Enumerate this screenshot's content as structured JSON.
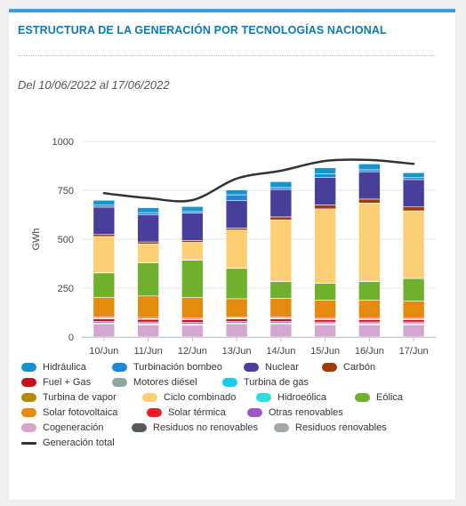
{
  "header": {
    "title": "ESTRUCTURA DE LA GENERACIÓN POR TECNOLOGÍAS NACIONAL",
    "period": "Del 10/06/2022 al 17/06/2022"
  },
  "chart_data": {
    "type": "bar",
    "stacked": true,
    "ylabel": "GWh",
    "ylim": [
      0,
      1000
    ],
    "yticks": [
      "0",
      "250",
      "500",
      "750",
      "1000"
    ],
    "grid": true,
    "legend_placement": "bottom",
    "categories": [
      "10/Jun",
      "11/Jun",
      "12/Jun",
      "13/Jun",
      "14/Jun",
      "15/Jun",
      "16/Jun",
      "17/Jun"
    ],
    "series": [
      {
        "name": "Cogeneración",
        "color": "#d4a6d0",
        "values": [
          65,
          62,
          60,
          65,
          65,
          62,
          62,
          62
        ]
      },
      {
        "name": "Residuos no renovables",
        "color": "#555a5f",
        "values": [
          4,
          4,
          4,
          4,
          4,
          4,
          4,
          4
        ]
      },
      {
        "name": "Residuos renovables",
        "color": "#a3a7ab",
        "values": [
          3,
          3,
          3,
          3,
          3,
          3,
          3,
          3
        ]
      },
      {
        "name": "Otras renovables",
        "color": "#9a5bc6",
        "values": [
          8,
          8,
          8,
          8,
          8,
          8,
          8,
          8
        ]
      },
      {
        "name": "Fuel + Gas",
        "color": "#c1121f",
        "values": [
          13,
          13,
          13,
          13,
          13,
          12,
          12,
          12
        ]
      },
      {
        "name": "Motores diésel",
        "color": "#8ea7a3",
        "values": [
          2,
          2,
          2,
          2,
          2,
          2,
          2,
          2
        ]
      },
      {
        "name": "Turbina de gas",
        "color": "#1fc8f0",
        "values": [
          1,
          1,
          1,
          1,
          1,
          1,
          1,
          1
        ]
      },
      {
        "name": "Turbina de vapor",
        "color": "#b38b00",
        "values": [
          1,
          1,
          1,
          1,
          1,
          1,
          1,
          1
        ]
      },
      {
        "name": "Solar térmica",
        "color": "#ee1c25",
        "values": [
          6,
          6,
          6,
          4,
          6,
          6,
          6,
          6
        ]
      },
      {
        "name": "Solar fotovoltaica",
        "color": "#e58a0c",
        "values": [
          100,
          110,
          105,
          95,
          95,
          90,
          90,
          85
        ]
      },
      {
        "name": "Eólica",
        "color": "#6fb12c",
        "values": [
          125,
          170,
          190,
          155,
          85,
          85,
          95,
          115
        ]
      },
      {
        "name": "Hidroeólica",
        "color": "#29e0d8",
        "values": [
          1,
          1,
          1,
          1,
          1,
          1,
          1,
          1
        ]
      },
      {
        "name": "Ciclo combinado",
        "color": "#fccf74",
        "values": [
          185,
          95,
          90,
          195,
          315,
          380,
          400,
          345
        ]
      },
      {
        "name": "Carbón",
        "color": "#9f3a09",
        "values": [
          10,
          10,
          10,
          10,
          15,
          20,
          20,
          20
        ]
      },
      {
        "name": "Nuclear",
        "color": "#473f9a",
        "values": [
          140,
          140,
          140,
          140,
          140,
          140,
          140,
          140
        ]
      },
      {
        "name": "Turbinación bombeo",
        "color": "#1f86d8",
        "values": [
          10,
          10,
          8,
          30,
          10,
          20,
          10,
          10
        ]
      },
      {
        "name": "Hidráulica",
        "color": "#1694cb",
        "values": [
          25,
          25,
          25,
          25,
          30,
          30,
          30,
          25
        ]
      }
    ],
    "line": {
      "name": "Generación total",
      "color": "#2f3439",
      "values": [
        735,
        710,
        700,
        810,
        850,
        900,
        905,
        885
      ]
    }
  },
  "legend": [
    {
      "label": "Hidráulica",
      "color": "#1694cb"
    },
    {
      "label": "Turbinación bombeo",
      "color": "#1f86d8"
    },
    {
      "label": "Nuclear",
      "color": "#473f9a"
    },
    {
      "label": "Carbón",
      "color": "#9f3a09"
    },
    {
      "label": "Fuel + Gas",
      "color": "#c1121f"
    },
    {
      "label": "Motores diésel",
      "color": "#8ea7a3"
    },
    {
      "label": "Turbina de gas",
      "color": "#1fc8f0"
    },
    {
      "label": "Turbina de vapor",
      "color": "#b38b00"
    },
    {
      "label": "Ciclo combinado",
      "color": "#fccf74"
    },
    {
      "label": "Hidroeólica",
      "color": "#29e0d8"
    },
    {
      "label": "Eólica",
      "color": "#6fb12c"
    },
    {
      "label": "Solar fotovoltaica",
      "color": "#e58a0c"
    },
    {
      "label": "Solar térmica",
      "color": "#ee1c25"
    },
    {
      "label": "Otras renovables",
      "color": "#9a5bc6"
    },
    {
      "label": "Cogeneración",
      "color": "#d4a6d0"
    },
    {
      "label": "Residuos no renovables",
      "color": "#555a5f"
    },
    {
      "label": "Residuos renovables",
      "color": "#a3a7ab"
    },
    {
      "label": "Generación total",
      "color": "#2f3439",
      "kind": "line"
    }
  ]
}
